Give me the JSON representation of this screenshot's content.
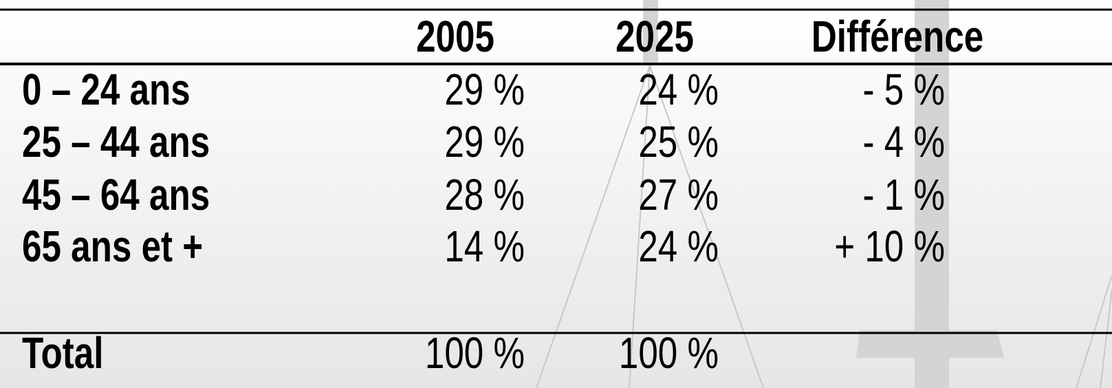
{
  "table": {
    "header": [
      "2005",
      "2025",
      "Différence"
    ],
    "rows": [
      [
        "0 – 24 ans",
        "29 %",
        "24 %",
        "- 5 %"
      ],
      [
        "25 – 44 ans",
        "29 %",
        "25 %",
        "- 4 %"
      ],
      [
        "45 – 64 ans",
        "28 %",
        "27 %",
        "- 1 %"
      ],
      [
        "65 ans et +",
        "14 %",
        "24 %",
        "+ 10 %"
      ]
    ],
    "total": [
      "Total",
      "100 %",
      "100 %"
    ]
  }
}
